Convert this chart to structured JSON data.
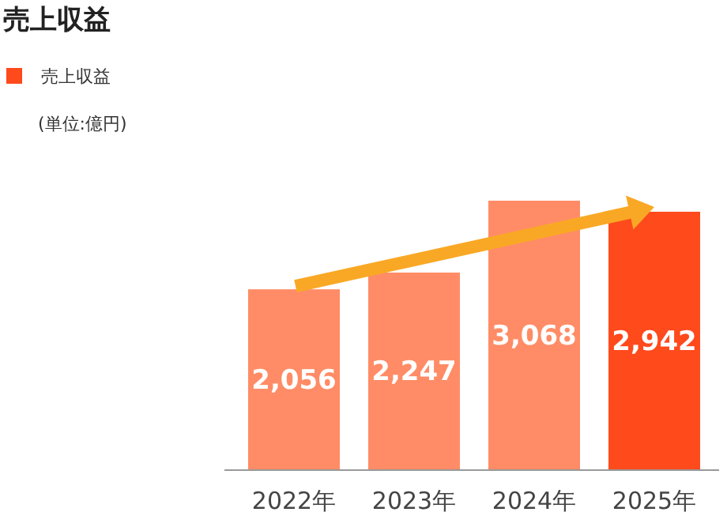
{
  "chart_data": {
    "type": "bar",
    "title": "売上収益",
    "annotations": [
      "(単位:億円)"
    ],
    "categories": [
      "2022年",
      "2023年",
      "2024年",
      "2025年"
    ],
    "series": [
      {
        "name": "売上収益",
        "color": "#ff4a1c",
        "colors": [
          "#ff8c66",
          "#ff8c66",
          "#ff8c66",
          "#ff4a1c"
        ],
        "values": [
          2056,
          2247,
          3068,
          2942
        ],
        "value_labels": [
          "2,056",
          "2,247",
          "3,068",
          "2,942"
        ]
      }
    ],
    "legend": "top left"
  }
}
